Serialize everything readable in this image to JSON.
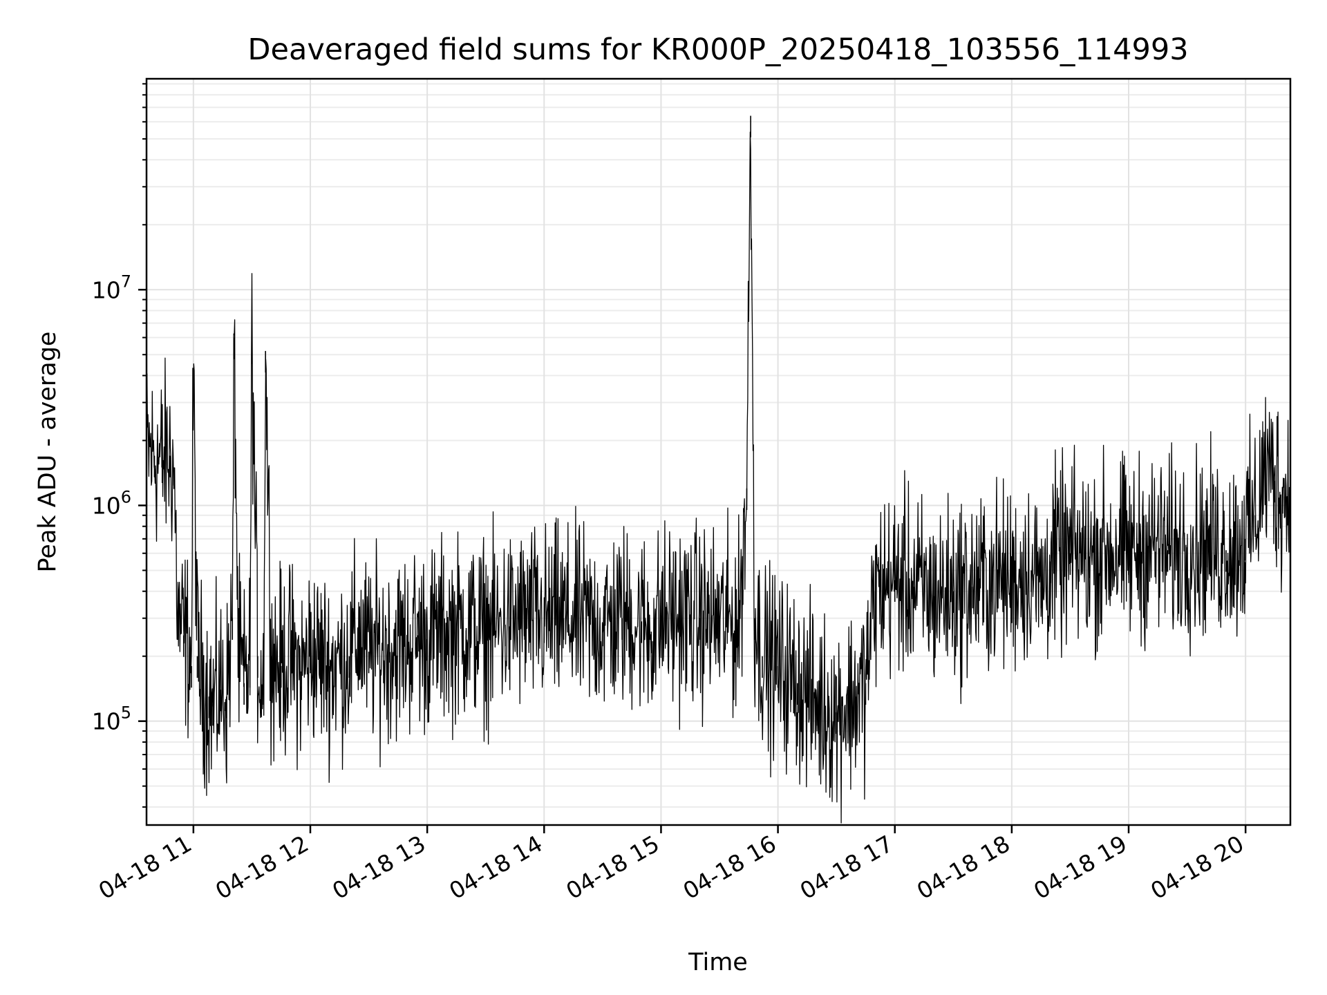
{
  "chart_data": {
    "type": "line",
    "title": "Deaveraged field sums for KR000P_20250418_103556_114993",
    "xlabel": "Time",
    "ylabel": "Peak ADU - average",
    "x_tick_labels": [
      "04-18 11",
      "04-18 12",
      "04-18 13",
      "04-18 14",
      "04-18 15",
      "04-18 16",
      "04-18 17",
      "04-18 18",
      "04-18 19",
      "04-18 20"
    ],
    "y_tick_labels": [
      {
        "value": 100000,
        "base": "10",
        "exp": "5"
      },
      {
        "value": 1000000,
        "base": "10",
        "exp": "6"
      },
      {
        "value": 10000000,
        "base": "10",
        "exp": "7"
      }
    ],
    "y_scale": "log",
    "grid": true,
    "line_color": "#000000",
    "xlim": [
      "2025-04-18 10:35:56",
      "2025-04-18 20:23:00"
    ],
    "ylim": [
      33000,
      95000000
    ],
    "series": [
      {
        "x": [
          "2025-04-18 10:36",
          "2025-04-18 10:40",
          "2025-04-18 10:44",
          "2025-04-18 10:48",
          "2025-04-18 10:50",
          "2025-04-18 10:52",
          "2025-04-18 10:55",
          "2025-04-18 10:58",
          "2025-04-18 10:59",
          "2025-04-18 11:00",
          "2025-04-18 11:02",
          "2025-04-18 11:05",
          "2025-04-18 11:08",
          "2025-04-18 11:10",
          "2025-04-18 11:14",
          "2025-04-18 11:17",
          "2025-04-18 11:20",
          "2025-04-18 11:21",
          "2025-04-18 11:23",
          "2025-04-18 11:26",
          "2025-04-18 11:29",
          "2025-04-18 11:30",
          "2025-04-18 11:33",
          "2025-04-18 11:36",
          "2025-04-18 11:37",
          "2025-04-18 11:40",
          "2025-04-18 11:45",
          "2025-04-18 11:50",
          "2025-04-18 11:55",
          "2025-04-18 12:00",
          "2025-04-18 12:10",
          "2025-04-18 12:20",
          "2025-04-18 12:25",
          "2025-04-18 12:30",
          "2025-04-18 12:40",
          "2025-04-18 12:50",
          "2025-04-18 12:55",
          "2025-04-18 13:00",
          "2025-04-18 13:10",
          "2025-04-18 13:20",
          "2025-04-18 13:30",
          "2025-04-18 13:40",
          "2025-04-18 13:50",
          "2025-04-18 14:00",
          "2025-04-18 14:10",
          "2025-04-18 14:20",
          "2025-04-18 14:30",
          "2025-04-18 14:40",
          "2025-04-18 14:50",
          "2025-04-18 14:55",
          "2025-04-18 15:00",
          "2025-04-18 15:10",
          "2025-04-18 15:20",
          "2025-04-18 15:30",
          "2025-04-18 15:40",
          "2025-04-18 15:44",
          "2025-04-18 15:46",
          "2025-04-18 15:48",
          "2025-04-18 15:52",
          "2025-04-18 16:00",
          "2025-04-18 16:10",
          "2025-04-18 16:20",
          "2025-04-18 16:30",
          "2025-04-18 16:40",
          "2025-04-18 16:45",
          "2025-04-18 16:50",
          "2025-04-18 17:00",
          "2025-04-18 17:10",
          "2025-04-18 17:20",
          "2025-04-18 17:30",
          "2025-04-18 17:40",
          "2025-04-18 17:50",
          "2025-04-18 18:00",
          "2025-04-18 18:10",
          "2025-04-18 18:15",
          "2025-04-18 18:20",
          "2025-04-18 18:30",
          "2025-04-18 18:40",
          "2025-04-18 18:50",
          "2025-04-18 19:00",
          "2025-04-18 19:10",
          "2025-04-18 19:20",
          "2025-04-18 19:30",
          "2025-04-18 19:40",
          "2025-04-18 19:50",
          "2025-04-18 20:00",
          "2025-04-18 20:05",
          "2025-04-18 20:10",
          "2025-04-18 20:15",
          "2025-04-18 20:20",
          "2025-04-18 20:23"
        ],
        "values": [
          1800000,
          1700000,
          1600000,
          1700000,
          1500000,
          300000,
          250000,
          220000,
          180000,
          4300000,
          200000,
          150000,
          130000,
          120000,
          140000,
          130000,
          300000,
          6000000,
          200000,
          150000,
          180000,
          5700000,
          200000,
          150000,
          5200000,
          200000,
          180000,
          200000,
          170000,
          210000,
          180000,
          200000,
          250000,
          210000,
          220000,
          230000,
          250000,
          240000,
          260000,
          270000,
          260000,
          280000,
          300000,
          290000,
          300000,
          290000,
          280000,
          300000,
          290000,
          260000,
          300000,
          310000,
          300000,
          290000,
          280000,
          1200000,
          64000000,
          300000,
          200000,
          180000,
          150000,
          120000,
          110000,
          130000,
          150000,
          400000,
          450000,
          420000,
          380000,
          400000,
          420000,
          450000,
          460000,
          500000,
          420000,
          550000,
          600000,
          580000,
          620000,
          600000,
          650000,
          620000,
          640000,
          650000,
          620000,
          700000,
          900000,
          1500000,
          1300000,
          1100000,
          1200000
        ]
      }
    ]
  }
}
